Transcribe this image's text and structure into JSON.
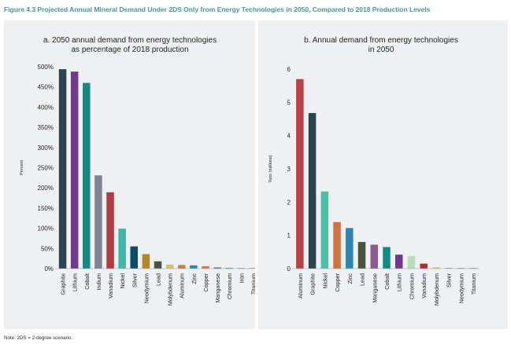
{
  "figure_title": "Figure 4.3 Projected Annual Mineral Demand Under 2DS Only from Energy Technologies in 2050, Compared to 2018 Production Levels",
  "note": "Note: 2DS = 2-degree scenario.",
  "chart_data": [
    {
      "type": "bar",
      "title": "a. 2050 annual demand from energy technologies as percentage of 2018 production",
      "title_lines": [
        "a. 2050 annual demand from energy technologies",
        "as percentage of 2018 production"
      ],
      "xlabel": "",
      "ylabel": "Percent",
      "ylim": [
        0,
        500
      ],
      "yticks": [
        0,
        50,
        100,
        150,
        200,
        250,
        300,
        350,
        400,
        450,
        500
      ],
      "ytick_labels": [
        "0%",
        "50%",
        "100%",
        "150%",
        "200%",
        "250%",
        "300%",
        "350%",
        "400%",
        "450%",
        "500%"
      ],
      "grid": false,
      "categories": [
        "Graphite",
        "Lithium",
        "Cobalt",
        "Indium",
        "Vanadium",
        "Nickel",
        "Silver",
        "Neodymium",
        "Lead",
        "Molybdenum",
        "Aluminum",
        "Zinc",
        "Copper",
        "Manganese",
        "Chromium",
        "Iron",
        "Titanium"
      ],
      "values": [
        494,
        488,
        460,
        231,
        189,
        99,
        55,
        36,
        18,
        10,
        9,
        8,
        6,
        3,
        2,
        1,
        1
      ],
      "colors": [
        "#2c4451",
        "#6e3a8c",
        "#158a80",
        "#7d8690",
        "#b2393f",
        "#3fb7a6",
        "#0e4b66",
        "#b5872a",
        "#4a5240",
        "#d6c06e",
        "#cf7c44",
        "#2b86b3",
        "#d27a48",
        "#8a5a90",
        "#4aa59a",
        "#8c9196",
        "#8a8f95"
      ]
    },
    {
      "type": "bar",
      "title": "b. Annual demand from energy technologies in 2050",
      "title_lines": [
        "b. Annual demand from energy technologies",
        "in 2050"
      ],
      "xlabel": "",
      "ylabel": "Tons (millions)",
      "ylim": [
        0,
        6
      ],
      "yticks": [
        0,
        1,
        2,
        3,
        4,
        5,
        6
      ],
      "ytick_labels": [
        "0",
        "1",
        "2",
        "3",
        "4",
        "5",
        "6"
      ],
      "grid": false,
      "categories": [
        "Aluminum",
        "Graphite",
        "Nickel",
        "Copper",
        "Zinc",
        "Lead",
        "Manganese",
        "Cobalt",
        "Lithium",
        "Chromium",
        "Vanadium",
        "Molybdenum",
        "Silver",
        "Neodymium",
        "Titanium"
      ],
      "values": [
        5.7,
        4.68,
        2.32,
        1.4,
        1.22,
        0.8,
        0.72,
        0.65,
        0.42,
        0.38,
        0.15,
        0.04,
        0.02,
        0.02,
        0.01
      ],
      "colors": [
        "#b9424a",
        "#2c4451",
        "#4cbfab",
        "#cf7140",
        "#2b86b3",
        "#4a5240",
        "#8a5a90",
        "#158a80",
        "#6e3a8c",
        "#b9dcb9",
        "#a8323a",
        "#d6c06e",
        "#8c9196",
        "#8c9196",
        "#8c9196"
      ]
    }
  ]
}
